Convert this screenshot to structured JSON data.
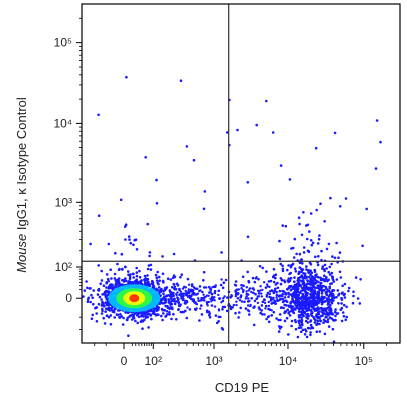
{
  "chart_data": {
    "type": "scatter",
    "subtype": "flow-cytometry-density-dot-plot",
    "xlabel": "CD19 PE",
    "ylabel_parts": [
      {
        "text": "Mouse",
        "italic": true
      },
      {
        "text": " IgG1, κ Isotype Control",
        "italic": false
      }
    ],
    "x_scale": "biexponential",
    "y_scale": "biexponential",
    "x_ticks": [
      {
        "value": 0,
        "label": "0"
      },
      {
        "value": 100,
        "label": "10²"
      },
      {
        "value": 1000,
        "label": "10³"
      },
      {
        "value": 10000,
        "label": "10⁴"
      },
      {
        "value": 100000,
        "label": "10⁵"
      }
    ],
    "y_ticks": [
      {
        "value": 0,
        "label": "0"
      },
      {
        "value": 100,
        "label": "10²"
      },
      {
        "value": 1000,
        "label": "10³"
      },
      {
        "value": 10000,
        "label": "10⁴"
      },
      {
        "value": 100000,
        "label": "10⁵"
      }
    ],
    "quadrant_gates": {
      "x": 1600,
      "y": 130
    },
    "grid": false,
    "legend": "none",
    "colors": {
      "low_density": "#1a1aff",
      "mid_density": "#00c8ff",
      "high_density_1": "#33ff33",
      "high_density_2": "#ffff00",
      "peak_density": "#ff2200",
      "gate_line": "#333333",
      "axis": "#000000"
    },
    "populations": [
      {
        "name": "",
        "x_center": 20,
        "y_center": 0,
        "approx_events": 1200,
        "description_hidden": true
      },
      {
        "name": "",
        "x_center": 20000,
        "y_center": 0,
        "approx_events": 900,
        "description_hidden": true
      }
    ]
  }
}
